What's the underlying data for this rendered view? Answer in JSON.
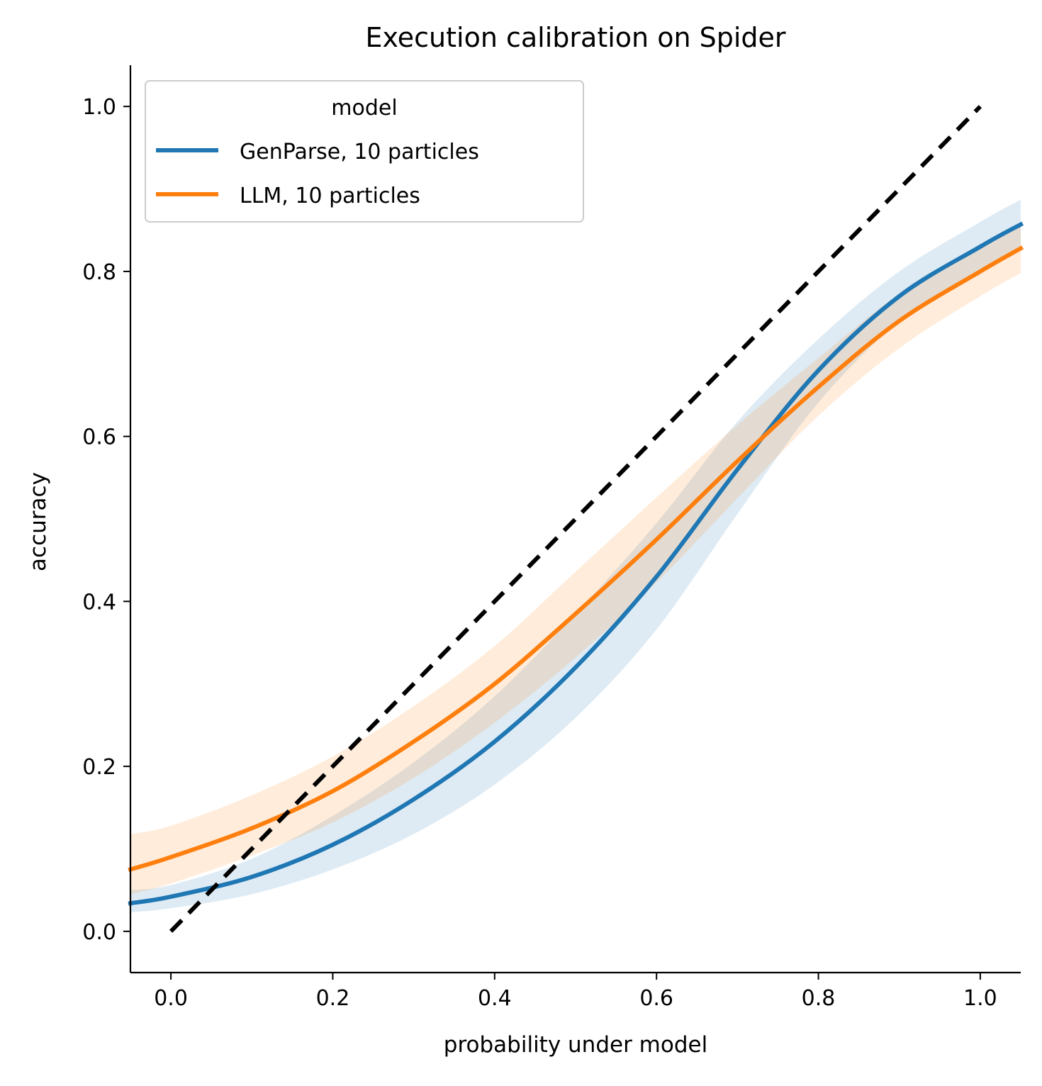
{
  "chart_data": {
    "type": "line",
    "title": "Execution calibration on Spider",
    "xlabel": "probability under model",
    "ylabel": "accuracy",
    "xlim": [
      -0.05,
      1.05
    ],
    "ylim": [
      -0.05,
      1.05
    ],
    "xticks": [
      0.0,
      0.2,
      0.4,
      0.6,
      0.8,
      1.0
    ],
    "yticks": [
      0.0,
      0.2,
      0.4,
      0.6,
      0.8,
      1.0
    ],
    "xtick_labels": [
      "0.0",
      "0.2",
      "0.4",
      "0.6",
      "0.8",
      "1.0"
    ],
    "ytick_labels": [
      "0.0",
      "0.2",
      "0.4",
      "0.6",
      "0.8",
      "1.0"
    ],
    "grid": false,
    "legend": {
      "title": "model",
      "placement": "top-left",
      "entries": [
        "GenParse, 10 particles",
        "LLM, 10 particles"
      ]
    },
    "x": [
      -0.05,
      0.0,
      0.1,
      0.2,
      0.3,
      0.4,
      0.5,
      0.6,
      0.7,
      0.8,
      0.9,
      1.0,
      1.05
    ],
    "series": [
      {
        "name": "GenParse, 10 particles",
        "color": "#1f77b4",
        "values": [
          0.034,
          0.042,
          0.066,
          0.105,
          0.16,
          0.23,
          0.32,
          0.43,
          0.56,
          0.68,
          0.77,
          0.83,
          0.857
        ],
        "ci_lower": [
          0.023,
          0.028,
          0.045,
          0.075,
          0.118,
          0.178,
          0.259,
          0.366,
          0.506,
          0.641,
          0.739,
          0.8,
          0.825
        ],
        "ci_upper": [
          0.05,
          0.056,
          0.088,
          0.14,
          0.205,
          0.285,
          0.385,
          0.495,
          0.618,
          0.718,
          0.8,
          0.86,
          0.887
        ]
      },
      {
        "name": "LLM, 10 particles",
        "color": "#ff7f0e",
        "values": [
          0.075,
          0.09,
          0.125,
          0.17,
          0.23,
          0.3,
          0.385,
          0.475,
          0.57,
          0.66,
          0.74,
          0.8,
          0.828
        ],
        "ci_lower": [
          0.045,
          0.058,
          0.092,
          0.132,
          0.186,
          0.253,
          0.332,
          0.423,
          0.525,
          0.625,
          0.707,
          0.77,
          0.798
        ],
        "ci_upper": [
          0.118,
          0.128,
          0.165,
          0.212,
          0.273,
          0.346,
          0.436,
          0.526,
          0.614,
          0.695,
          0.773,
          0.832,
          0.858
        ]
      },
      {
        "name": "",
        "color": "#000000",
        "style": "dashed",
        "x": [
          0.0,
          1.0
        ],
        "values": [
          0.0,
          1.0
        ]
      }
    ]
  }
}
